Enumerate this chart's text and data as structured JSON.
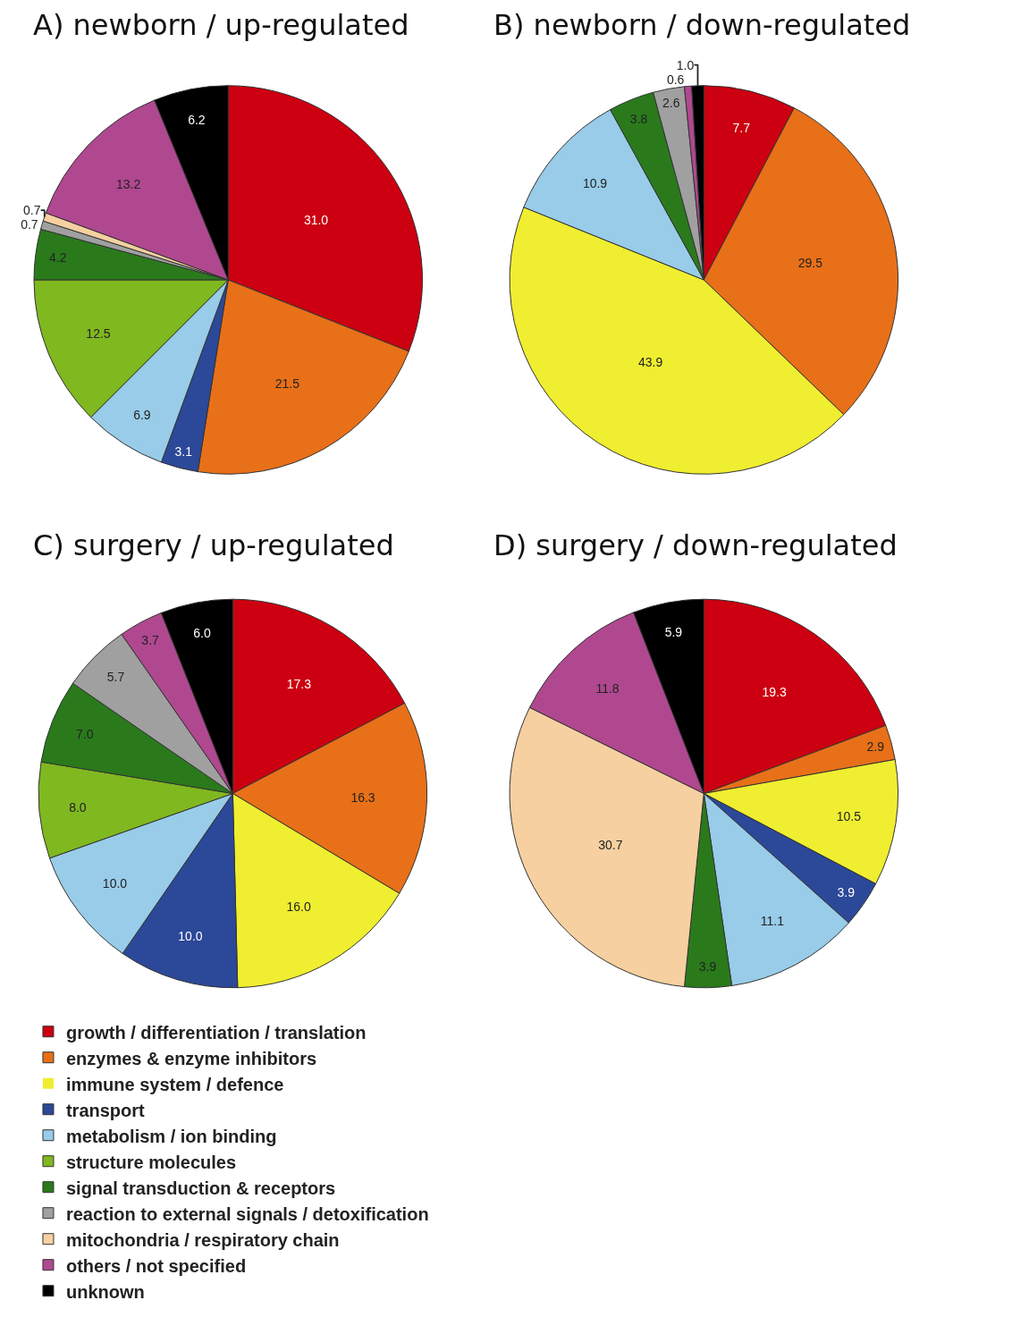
{
  "chart_data": [
    {
      "type": "pie",
      "title": "A) newborn / up-regulated",
      "legend": "bottom",
      "categories": [
        "growth / differentiation / translation",
        "enzymes & enzyme inhibitors",
        "immune system / defence",
        "transport",
        "metabolism / ion binding",
        "structure molecules",
        "signal transduction & receptors",
        "reaction to external signals / detoxification",
        "mitochondria / respiratory chain",
        "others / not specified",
        "unknown"
      ],
      "values": [
        31.0,
        21.5,
        0,
        3.1,
        6.9,
        12.5,
        4.2,
        0.7,
        0.7,
        13.2,
        6.2
      ],
      "value_labels": [
        "31.0",
        "21.5",
        null,
        "3.1",
        "6.9",
        "12.5",
        "4.2",
        "0.7",
        "0.7",
        "13.2",
        "6.2"
      ],
      "colors": [
        "#cc0010",
        "#e87018",
        "#f0ee30",
        "#2c4898",
        "#98cce8",
        "#80b820",
        "#2a7a1c",
        "#a0a0a0",
        "#f6d0a0",
        "#b04890",
        "#000000"
      ]
    },
    {
      "type": "pie",
      "title": "B) newborn / down-regulated",
      "categories": [
        null,
        null,
        null,
        null,
        null,
        null,
        null,
        null
      ],
      "values": [
        7.7,
        29.5,
        43.9,
        10.9,
        3.8,
        2.6,
        0.6,
        1.0
      ],
      "value_labels": [
        "7.7",
        "29.5",
        "43.9",
        "10.9",
        "3.8",
        "2.6",
        "0.6",
        "1.0"
      ],
      "colors": [
        "#cc0010",
        "#e87018",
        "#f0ee30",
        "#98cce8",
        "#2a7a1c",
        "#a0a0a0",
        "#b04890",
        "#000000"
      ]
    },
    {
      "type": "pie",
      "title": "C) surgery / up-regulated",
      "categories": [
        null,
        null,
        null,
        null,
        null,
        null,
        null,
        null,
        null,
        null
      ],
      "values": [
        17.3,
        16.3,
        16.0,
        10.0,
        10.0,
        8.0,
        7.0,
        5.7,
        3.7,
        6.0
      ],
      "value_labels": [
        "17.3",
        "16.3",
        "16.0",
        "10.0",
        "10.0",
        "8.0",
        "7.0",
        "5.7",
        "3.7",
        "6.0"
      ],
      "colors": [
        "#cc0010",
        "#e87018",
        "#f0ee30",
        "#2c4898",
        "#98cce8",
        "#80b820",
        "#2a7a1c",
        "#a0a0a0",
        "#b04890",
        "#000000"
      ]
    },
    {
      "type": "pie",
      "title": "D) surgery / down-regulated",
      "categories": [
        null,
        null,
        null,
        null,
        null,
        null,
        null,
        null,
        null
      ],
      "values": [
        19.3,
        2.9,
        10.5,
        3.9,
        11.1,
        3.9,
        30.7,
        11.8,
        5.9
      ],
      "value_labels": [
        "19.3",
        "2.9",
        "10.5",
        "3.9",
        "11.1",
        "3.9",
        "30.7",
        "11.8",
        "5.9"
      ],
      "colors": [
        "#cc0010",
        "#e87018",
        "#f0ee30",
        "#2c4898",
        "#98cce8",
        "#2a7a1c",
        "#f6d0a0",
        "#b04890",
        "#000000"
      ]
    }
  ]
}
